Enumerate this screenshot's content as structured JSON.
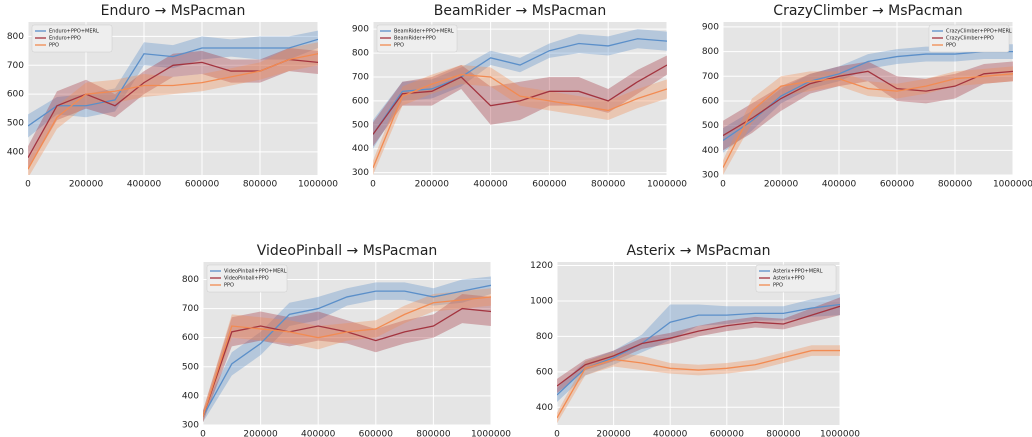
{
  "chart_data": [
    {
      "type": "line",
      "title": "Enduro → MsPacman",
      "legend": "upper left",
      "grid": true,
      "x": [
        0,
        100000,
        200000,
        300000,
        400000,
        500000,
        600000,
        700000,
        800000,
        900000,
        1000000
      ],
      "xlim": [
        0,
        1000000
      ],
      "xticks": [
        0,
        200000,
        400000,
        600000,
        800000,
        1000000
      ],
      "ylim": [
        320,
        850
      ],
      "yticks": [
        400,
        500,
        600,
        700,
        800
      ],
      "series": [
        {
          "name": "Enduro+PPO+MERL",
          "color": "#5b8fc9",
          "values": [
            490,
            560,
            560,
            580,
            740,
            730,
            760,
            760,
            760,
            760,
            790
          ],
          "error": [
            40,
            30,
            40,
            40,
            40,
            40,
            40,
            30,
            40,
            40,
            30
          ]
        },
        {
          "name": "Enduro+PPO",
          "color": "#a3343f",
          "values": [
            380,
            560,
            600,
            560,
            640,
            700,
            710,
            680,
            680,
            720,
            710
          ],
          "error": [
            40,
            50,
            50,
            40,
            40,
            40,
            40,
            40,
            40,
            40,
            40
          ]
        },
        {
          "name": "PPO",
          "color": "#f28b52",
          "values": [
            340,
            520,
            600,
            610,
            630,
            630,
            640,
            660,
            680,
            720,
            740
          ],
          "error": [
            30,
            40,
            40,
            40,
            40,
            30,
            30,
            30,
            30,
            40,
            40
          ]
        }
      ]
    },
    {
      "type": "line",
      "title": "BeamRider → MsPacman",
      "legend": "upper left",
      "grid": true,
      "x": [
        0,
        100000,
        200000,
        300000,
        400000,
        500000,
        600000,
        700000,
        800000,
        900000,
        1000000
      ],
      "xlim": [
        0,
        1000000
      ],
      "xticks": [
        0,
        200000,
        400000,
        600000,
        800000,
        1000000
      ],
      "ylim": [
        290,
        930
      ],
      "yticks": [
        300,
        400,
        500,
        600,
        700,
        800,
        900
      ],
      "series": [
        {
          "name": "BeamRider+PPO+MERL",
          "color": "#5b8fc9",
          "values": [
            460,
            640,
            650,
            700,
            780,
            750,
            810,
            840,
            830,
            860,
            850
          ],
          "error": [
            60,
            40,
            40,
            40,
            30,
            30,
            30,
            40,
            40,
            40,
            40
          ]
        },
        {
          "name": "BeamRider+PPO",
          "color": "#a3343f",
          "values": [
            460,
            630,
            640,
            700,
            580,
            600,
            640,
            640,
            600,
            680,
            750
          ],
          "error": [
            50,
            50,
            60,
            50,
            80,
            80,
            60,
            60,
            50,
            50,
            40
          ]
        },
        {
          "name": "PPO",
          "color": "#f28b52",
          "values": [
            320,
            620,
            670,
            710,
            700,
            620,
            600,
            580,
            560,
            610,
            650
          ],
          "error": [
            30,
            40,
            40,
            40,
            40,
            40,
            40,
            40,
            40,
            40,
            40
          ]
        }
      ]
    },
    {
      "type": "line",
      "title": "CrazyClimber → MsPacman",
      "legend": "upper right",
      "grid": true,
      "x": [
        0,
        100000,
        200000,
        300000,
        400000,
        500000,
        600000,
        700000,
        800000,
        900000,
        1000000
      ],
      "xlim": [
        0,
        1000000
      ],
      "xticks": [
        0,
        200000,
        400000,
        600000,
        800000,
        1000000
      ],
      "ylim": [
        300,
        920
      ],
      "yticks": [
        300,
        400,
        500,
        600,
        700,
        800,
        900
      ],
      "series": [
        {
          "name": "CrazyClimber+PPO+MERL",
          "color": "#5b8fc9",
          "values": [
            440,
            520,
            620,
            680,
            710,
            760,
            780,
            790,
            790,
            800,
            800
          ],
          "error": [
            50,
            40,
            30,
            30,
            30,
            30,
            30,
            30,
            30,
            30,
            30
          ]
        },
        {
          "name": "CrazyClimber+PPO",
          "color": "#a3343f",
          "values": [
            460,
            530,
            610,
            670,
            700,
            720,
            650,
            640,
            660,
            710,
            720
          ],
          "error": [
            60,
            60,
            50,
            40,
            40,
            40,
            50,
            50,
            50,
            40,
            40
          ]
        },
        {
          "name": "PPO",
          "color": "#f28b52",
          "values": [
            330,
            560,
            660,
            680,
            690,
            650,
            640,
            660,
            690,
            700,
            710
          ],
          "error": [
            30,
            50,
            40,
            40,
            30,
            30,
            30,
            30,
            30,
            30,
            30
          ]
        }
      ]
    },
    {
      "type": "line",
      "title": "VideoPinball → MsPacman",
      "legend": "upper left",
      "grid": true,
      "x": [
        0,
        100000,
        200000,
        300000,
        400000,
        500000,
        600000,
        700000,
        800000,
        900000,
        1000000
      ],
      "xlim": [
        0,
        1000000
      ],
      "xticks": [
        0,
        200000,
        400000,
        600000,
        800000,
        1000000
      ],
      "ylim": [
        300,
        860
      ],
      "yticks": [
        300,
        400,
        500,
        600,
        700,
        800
      ],
      "series": [
        {
          "name": "VideoPinball+PPO+MERL",
          "color": "#5b8fc9",
          "values": [
            330,
            510,
            580,
            680,
            700,
            740,
            760,
            760,
            740,
            760,
            780
          ],
          "error": [
            20,
            40,
            40,
            40,
            40,
            30,
            30,
            30,
            30,
            40,
            30
          ]
        },
        {
          "name": "VideoPinball+PPO",
          "color": "#a3343f",
          "values": [
            330,
            620,
            640,
            620,
            640,
            620,
            590,
            620,
            640,
            700,
            690
          ],
          "error": [
            20,
            50,
            50,
            50,
            50,
            40,
            40,
            40,
            40,
            50,
            50
          ]
        },
        {
          "name": "PPO",
          "color": "#f28b52",
          "values": [
            330,
            640,
            630,
            620,
            600,
            620,
            630,
            680,
            720,
            730,
            740
          ],
          "error": [
            20,
            40,
            40,
            40,
            40,
            30,
            30,
            30,
            30,
            30,
            30
          ]
        }
      ]
    },
    {
      "type": "line",
      "title": "Asterix → MsPacman",
      "legend": "upper right",
      "grid": true,
      "x": [
        0,
        100000,
        200000,
        300000,
        400000,
        500000,
        600000,
        700000,
        800000,
        900000,
        1000000
      ],
      "xlim": [
        0,
        1000000
      ],
      "xticks": [
        0,
        200000,
        400000,
        600000,
        800000,
        1000000
      ],
      "ylim": [
        300,
        1220
      ],
      "yticks": [
        400,
        600,
        800,
        1000,
        1200
      ],
      "series": [
        {
          "name": "Asterix+PPO+MERL",
          "color": "#5b8fc9",
          "values": [
            470,
            620,
            680,
            760,
            880,
            920,
            920,
            930,
            930,
            960,
            980
          ],
          "error": [
            40,
            40,
            40,
            50,
            100,
            60,
            50,
            40,
            40,
            50,
            60
          ]
        },
        {
          "name": "Asterix+PPO",
          "color": "#a3343f",
          "values": [
            520,
            640,
            690,
            760,
            790,
            830,
            860,
            880,
            870,
            920,
            970
          ],
          "error": [
            40,
            30,
            30,
            30,
            30,
            30,
            30,
            30,
            30,
            40,
            50
          ]
        },
        {
          "name": "PPO",
          "color": "#f28b52",
          "values": [
            340,
            620,
            670,
            650,
            620,
            610,
            620,
            640,
            680,
            720,
            720
          ],
          "error": [
            30,
            40,
            40,
            40,
            30,
            30,
            30,
            30,
            30,
            30,
            30
          ]
        }
      ]
    }
  ]
}
